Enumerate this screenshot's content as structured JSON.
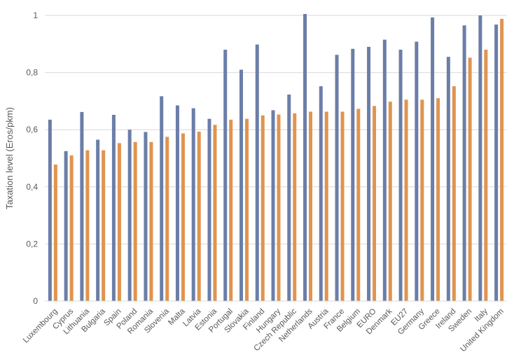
{
  "chart_data": {
    "type": "bar",
    "ylabel": "Taxation level (Eros/pkm)",
    "xlabel": "",
    "ylim": [
      0,
      1
    ],
    "yticks": [
      0,
      0.2,
      0.4,
      0.6,
      0.8,
      1
    ],
    "ytick_labels": [
      "0",
      "0,2",
      "0,4",
      "0,6",
      "0,8",
      "1"
    ],
    "grid": true,
    "categories": [
      "Luxembourg",
      "Cyprus",
      "Lithuania",
      "Bulgaria",
      "Spain",
      "Poland",
      "Romania",
      "Slovenia",
      "Malta",
      "Latvia",
      "Estonia",
      "Portugal",
      "Slovakia",
      "Finland",
      "Hungary",
      "Czech Republic",
      "Netherlands",
      "Austria",
      "France",
      "Belgium",
      "EURO",
      "Denmark",
      "EU27",
      "Germany",
      "Greece",
      "Ireland",
      "Sweden",
      "Italy",
      "United Kingdom"
    ],
    "series": [
      {
        "color": "#6b7ea8",
        "values": [
          0.635,
          0.525,
          0.662,
          0.565,
          0.652,
          0.6,
          0.592,
          0.717,
          0.685,
          0.675,
          0.638,
          0.88,
          0.81,
          0.898,
          0.668,
          0.723,
          1.005,
          0.752,
          0.862,
          0.883,
          0.89,
          0.915,
          0.88,
          0.908,
          0.993,
          0.855,
          0.965,
          1.0,
          0.968
        ]
      },
      {
        "color": "#e0944f",
        "values": [
          0.478,
          0.51,
          0.528,
          0.528,
          0.553,
          0.557,
          0.557,
          0.575,
          0.587,
          0.593,
          0.617,
          0.635,
          0.638,
          0.65,
          0.653,
          0.657,
          0.663,
          0.663,
          0.663,
          0.673,
          0.683,
          0.698,
          0.705,
          0.705,
          0.71,
          0.752,
          0.852,
          0.88,
          0.988
        ]
      }
    ]
  }
}
